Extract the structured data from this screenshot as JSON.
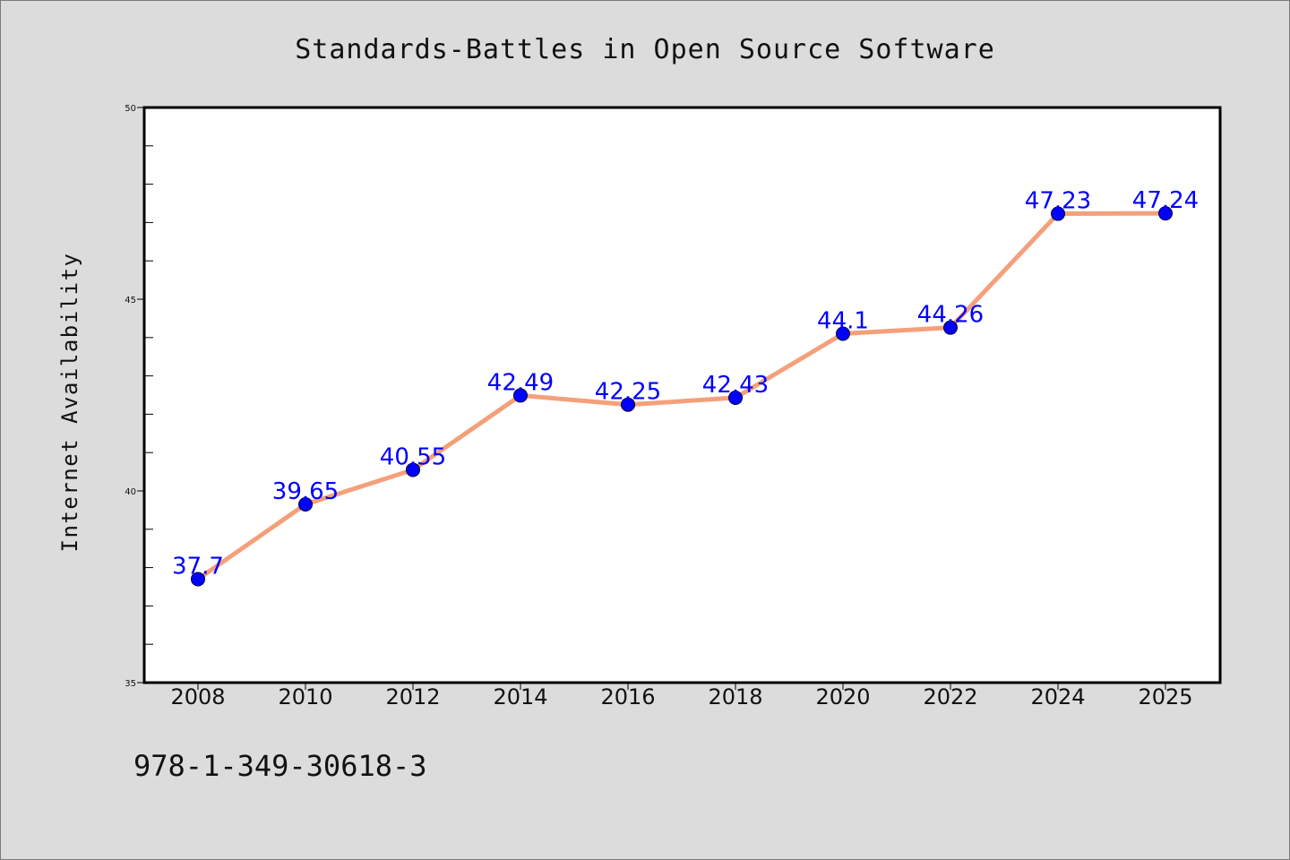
{
  "chart_data": {
    "type": "line",
    "title": "Standards-Battles in Open Source Software",
    "xlabel": "",
    "ylabel": "Internet Availability",
    "categories": [
      "2008",
      "2010",
      "2012",
      "2014",
      "2016",
      "2018",
      "2020",
      "2022",
      "2024",
      "2025"
    ],
    "series": [
      {
        "values": [
          37.7,
          39.65,
          40.55,
          42.49,
          42.25,
          42.43,
          44.1,
          44.26,
          47.23,
          47.24
        ],
        "labels": [
          "37.7",
          "39.65",
          "40.55",
          "42.49",
          "42.25",
          "42.43",
          "44.1",
          "44.26",
          "47.23",
          "47.24"
        ],
        "line_color": "#f4a07a",
        "marker_color": "#0000ff",
        "label_color": "#0000ff"
      }
    ],
    "ylim": [
      35,
      50
    ],
    "yticks": [
      "35",
      "40",
      "45",
      "50"
    ],
    "grid": false,
    "legend": "none"
  },
  "footer": {
    "isbn": "978-1-349-30618-3"
  },
  "colors": {
    "background": "#dcdcdc",
    "plot_background": "#ffffff",
    "line": "#f4a07a",
    "marker": "#0000ff",
    "data_label": "#0000ff"
  }
}
